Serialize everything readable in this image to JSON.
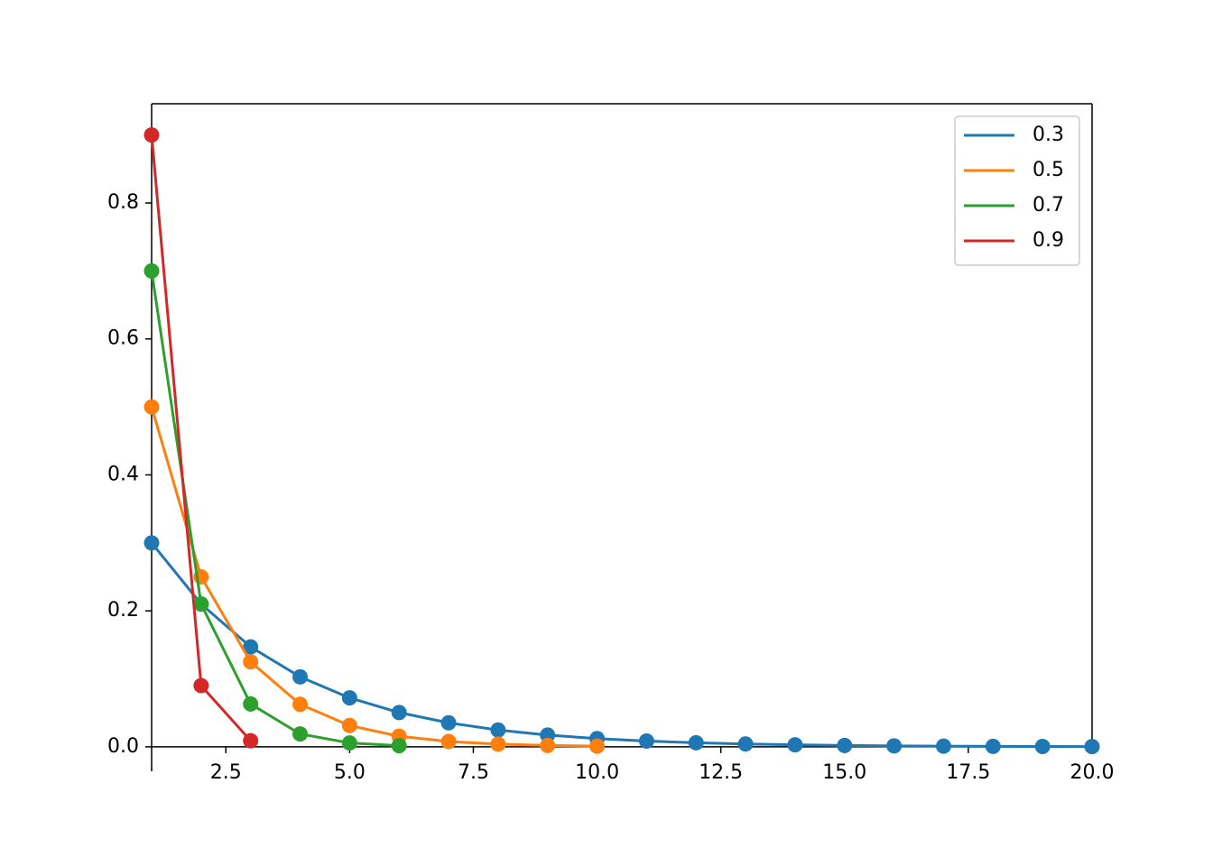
{
  "chart_data": {
    "type": "line",
    "series": [
      {
        "name": "0.3",
        "color": "#1f77b4",
        "x": [
          1,
          2,
          3,
          4,
          5,
          6,
          7,
          8,
          9,
          10,
          11,
          12,
          13,
          14,
          15,
          16,
          17,
          18,
          19,
          20
        ],
        "values": [
          0.3,
          0.21,
          0.147,
          0.1029,
          0.072,
          0.0504,
          0.0353,
          0.0247,
          0.0173,
          0.0121,
          0.0085,
          0.0059,
          0.0042,
          0.0029,
          0.002,
          0.0014,
          0.001,
          0.0007,
          0.0005,
          0.0003
        ]
      },
      {
        "name": "0.5",
        "color": "#ff7f0e",
        "x": [
          1,
          2,
          3,
          4,
          5,
          6,
          7,
          8,
          9,
          10
        ],
        "values": [
          0.5,
          0.25,
          0.125,
          0.0625,
          0.0313,
          0.0156,
          0.0078,
          0.0039,
          0.002,
          0.001
        ]
      },
      {
        "name": "0.7",
        "color": "#2ca02c",
        "x": [
          1,
          2,
          3,
          4,
          5,
          6
        ],
        "values": [
          0.7,
          0.21,
          0.063,
          0.0189,
          0.0057,
          0.0017
        ]
      },
      {
        "name": "0.9",
        "color": "#d62728",
        "x": [
          1,
          2,
          3
        ],
        "values": [
          0.9,
          0.09,
          0.009
        ]
      }
    ],
    "xlim": [
      1,
      20
    ],
    "ylim": [
      -0.036,
      0.946
    ],
    "xticks": [
      2.5,
      {
        "value": 5,
        "label": "5.0"
      },
      7.5,
      {
        "value": 10,
        "label": "10.0"
      },
      12.5,
      {
        "value": 15,
        "label": "15.0"
      },
      17.5,
      {
        "value": 20,
        "label": "20.0"
      }
    ],
    "yticks": [
      {
        "value": 0,
        "label": "0.0"
      },
      0.2,
      0.4,
      0.6,
      0.8
    ],
    "legend": "upper right"
  }
}
